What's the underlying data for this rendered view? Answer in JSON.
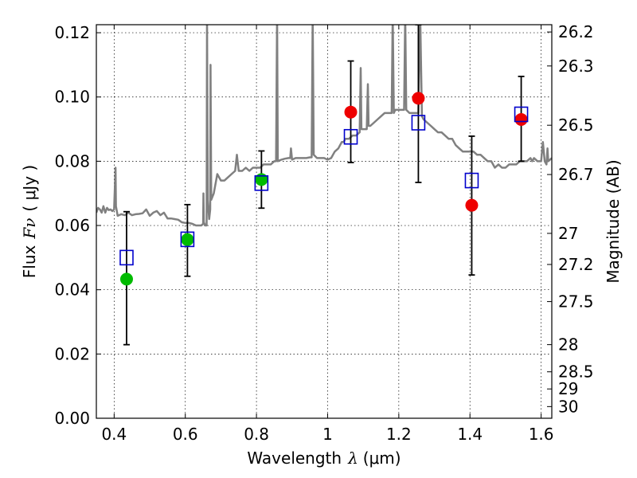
{
  "chart_data": {
    "type": "scatter",
    "xlabel": "Wavelength",
    "xlabel_symbol": "λ",
    "xlabel_unit": "(μm)",
    "ylabel": "Flux",
    "ylabel_symbol": "Fν",
    "ylabel_unit": "( μJy )",
    "y2label": "Magnitude (AB)",
    "xlim": [
      0.35,
      1.63
    ],
    "ylim": [
      0.0,
      0.1225
    ],
    "grid": true,
    "x_ticks": [
      0.4,
      0.6,
      0.8,
      1.0,
      1.2,
      1.4,
      1.6
    ],
    "x_tick_labels": [
      "0.4",
      "0.6",
      "0.8",
      "1",
      "1.2",
      "1.4",
      "1.6"
    ],
    "y_ticks": [
      0.0,
      0.02,
      0.04,
      0.06,
      0.08,
      0.1,
      0.12
    ],
    "y_tick_labels": [
      "0.00",
      "0.02",
      "0.04",
      "0.06",
      "0.08",
      "0.10",
      "0.12"
    ],
    "y2_ticks": [
      {
        "mag": 26.2,
        "label": "26.2"
      },
      {
        "mag": 26.3,
        "label": "26.3"
      },
      {
        "mag": 26.5,
        "label": "26.5"
      },
      {
        "mag": 26.7,
        "label": "26.7"
      },
      {
        "mag": 27.0,
        "label": "27"
      },
      {
        "mag": 27.2,
        "label": "27.2"
      },
      {
        "mag": 27.5,
        "label": "27.5"
      },
      {
        "mag": 28.0,
        "label": "28"
      },
      {
        "mag": 28.5,
        "label": "28.5"
      },
      {
        "mag": 29.0,
        "label": "29"
      },
      {
        "mag": 30.0,
        "label": "30"
      }
    ],
    "observed": [
      {
        "x": 0.435,
        "y": 0.0433,
        "err_low": 0.0229,
        "err_high": 0.0643,
        "color": "#00bb00"
      },
      {
        "x": 0.606,
        "y": 0.0556,
        "err_low": 0.0442,
        "err_high": 0.0665,
        "color": "#00bb00"
      },
      {
        "x": 0.814,
        "y": 0.0743,
        "err_low": 0.0654,
        "err_high": 0.0832,
        "color": "#00bb00"
      },
      {
        "x": 1.065,
        "y": 0.0953,
        "err_low": 0.0796,
        "err_high": 0.1112,
        "color": "#ee0000"
      },
      {
        "x": 1.255,
        "y": 0.0996,
        "err_low": 0.0734,
        "err_high": 0.1225,
        "color": "#ee0000"
      },
      {
        "x": 1.405,
        "y": 0.0663,
        "err_low": 0.0446,
        "err_high": 0.0878,
        "color": "#ee0000"
      },
      {
        "x": 1.544,
        "y": 0.093,
        "err_low": 0.08,
        "err_high": 0.1064,
        "color": "#ee0000"
      }
    ],
    "model_photometry": [
      {
        "x": 0.435,
        "y": 0.05
      },
      {
        "x": 0.606,
        "y": 0.0557
      },
      {
        "x": 0.814,
        "y": 0.0732
      },
      {
        "x": 1.065,
        "y": 0.0876
      },
      {
        "x": 1.255,
        "y": 0.092
      },
      {
        "x": 1.405,
        "y": 0.074
      },
      {
        "x": 1.544,
        "y": 0.0946
      }
    ],
    "model_spectrum": {
      "color": "#808080",
      "points": [
        [
          0.35,
          0.064
        ],
        [
          0.355,
          0.0655
        ],
        [
          0.36,
          0.065
        ],
        [
          0.365,
          0.064
        ],
        [
          0.37,
          0.066
        ],
        [
          0.375,
          0.064
        ],
        [
          0.38,
          0.0655
        ],
        [
          0.385,
          0.0648
        ],
        [
          0.39,
          0.065
        ],
        [
          0.395,
          0.0645
        ],
        [
          0.4,
          0.065
        ],
        [
          0.403,
          0.075
        ],
        [
          0.404,
          0.078
        ],
        [
          0.405,
          0.066
        ],
        [
          0.41,
          0.063
        ],
        [
          0.42,
          0.0635
        ],
        [
          0.43,
          0.0632
        ],
        [
          0.44,
          0.064
        ],
        [
          0.45,
          0.0632
        ],
        [
          0.46,
          0.0635
        ],
        [
          0.47,
          0.0636
        ],
        [
          0.48,
          0.0638
        ],
        [
          0.49,
          0.065
        ],
        [
          0.5,
          0.063
        ],
        [
          0.51,
          0.064
        ],
        [
          0.52,
          0.0645
        ],
        [
          0.53,
          0.0632
        ],
        [
          0.54,
          0.064
        ],
        [
          0.55,
          0.0622
        ],
        [
          0.56,
          0.0622
        ],
        [
          0.57,
          0.062
        ],
        [
          0.58,
          0.0618
        ],
        [
          0.59,
          0.061
        ],
        [
          0.6,
          0.0608
        ],
        [
          0.61,
          0.0608
        ],
        [
          0.62,
          0.0605
        ],
        [
          0.63,
          0.06
        ],
        [
          0.64,
          0.06
        ],
        [
          0.645,
          0.06
        ],
        [
          0.65,
          0.0605
        ],
        [
          0.651,
          0.07
        ],
        [
          0.652,
          0.061
        ],
        [
          0.656,
          0.06
        ],
        [
          0.66,
          0.06
        ],
        [
          0.661,
          0.126
        ],
        [
          0.663,
          0.068
        ],
        [
          0.667,
          0.062
        ],
        [
          0.67,
          0.065
        ],
        [
          0.671,
          0.11
        ],
        [
          0.673,
          0.068
        ],
        [
          0.68,
          0.07
        ],
        [
          0.69,
          0.076
        ],
        [
          0.7,
          0.074
        ],
        [
          0.71,
          0.074
        ],
        [
          0.72,
          0.075
        ],
        [
          0.73,
          0.076
        ],
        [
          0.74,
          0.077
        ],
        [
          0.745,
          0.082
        ],
        [
          0.75,
          0.077
        ],
        [
          0.76,
          0.077
        ],
        [
          0.77,
          0.078
        ],
        [
          0.78,
          0.077
        ],
        [
          0.79,
          0.078
        ],
        [
          0.8,
          0.078
        ],
        [
          0.81,
          0.078
        ],
        [
          0.82,
          0.079
        ],
        [
          0.83,
          0.079
        ],
        [
          0.84,
          0.079
        ],
        [
          0.85,
          0.08
        ],
        [
          0.855,
          0.08
        ],
        [
          0.858,
          0.126
        ],
        [
          0.86,
          0.08
        ],
        [
          0.87,
          0.0805
        ],
        [
          0.88,
          0.0808
        ],
        [
          0.89,
          0.081
        ],
        [
          0.895,
          0.081
        ],
        [
          0.897,
          0.084
        ],
        [
          0.9,
          0.0805
        ],
        [
          0.91,
          0.081
        ],
        [
          0.92,
          0.081
        ],
        [
          0.93,
          0.081
        ],
        [
          0.94,
          0.081
        ],
        [
          0.95,
          0.0812
        ],
        [
          0.955,
          0.0812
        ],
        [
          0.958,
          0.126
        ],
        [
          0.961,
          0.082
        ],
        [
          0.97,
          0.081
        ],
        [
          0.98,
          0.081
        ],
        [
          0.99,
          0.081
        ],
        [
          1.0,
          0.0805
        ],
        [
          1.01,
          0.081
        ],
        [
          1.02,
          0.083
        ],
        [
          1.03,
          0.084
        ],
        [
          1.035,
          0.085
        ],
        [
          1.04,
          0.086
        ],
        [
          1.045,
          0.086
        ],
        [
          1.05,
          0.087
        ],
        [
          1.06,
          0.087
        ],
        [
          1.07,
          0.088
        ],
        [
          1.08,
          0.088
        ],
        [
          1.085,
          0.0885
        ],
        [
          1.09,
          0.089
        ],
        [
          1.093,
          0.109
        ],
        [
          1.095,
          0.09
        ],
        [
          1.1,
          0.09
        ],
        [
          1.11,
          0.09
        ],
        [
          1.113,
          0.104
        ],
        [
          1.115,
          0.091
        ],
        [
          1.12,
          0.091
        ],
        [
          1.13,
          0.092
        ],
        [
          1.14,
          0.093
        ],
        [
          1.15,
          0.094
        ],
        [
          1.16,
          0.095
        ],
        [
          1.17,
          0.095
        ],
        [
          1.18,
          0.095
        ],
        [
          1.183,
          0.126
        ],
        [
          1.186,
          0.095
        ],
        [
          1.19,
          0.096
        ],
        [
          1.2,
          0.096
        ],
        [
          1.21,
          0.096
        ],
        [
          1.215,
          0.096
        ],
        [
          1.218,
          0.126
        ],
        [
          1.221,
          0.096
        ],
        [
          1.23,
          0.095
        ],
        [
          1.24,
          0.095
        ],
        [
          1.25,
          0.095
        ],
        [
          1.255,
          0.095
        ],
        [
          1.26,
          0.126
        ],
        [
          1.265,
          0.094
        ],
        [
          1.27,
          0.093
        ],
        [
          1.28,
          0.092
        ],
        [
          1.29,
          0.091
        ],
        [
          1.3,
          0.09
        ],
        [
          1.31,
          0.089
        ],
        [
          1.32,
          0.089
        ],
        [
          1.33,
          0.088
        ],
        [
          1.34,
          0.087
        ],
        [
          1.35,
          0.087
        ],
        [
          1.36,
          0.085
        ],
        [
          1.37,
          0.084
        ],
        [
          1.38,
          0.083
        ],
        [
          1.39,
          0.083
        ],
        [
          1.4,
          0.083
        ],
        [
          1.41,
          0.083
        ],
        [
          1.42,
          0.082
        ],
        [
          1.43,
          0.082
        ],
        [
          1.44,
          0.081
        ],
        [
          1.45,
          0.08
        ],
        [
          1.46,
          0.08
        ],
        [
          1.47,
          0.078
        ],
        [
          1.48,
          0.079
        ],
        [
          1.49,
          0.078
        ],
        [
          1.5,
          0.078
        ],
        [
          1.51,
          0.079
        ],
        [
          1.52,
          0.079
        ],
        [
          1.53,
          0.079
        ],
        [
          1.54,
          0.08
        ],
        [
          1.55,
          0.08
        ],
        [
          1.56,
          0.08
        ],
        [
          1.57,
          0.081
        ],
        [
          1.575,
          0.08
        ],
        [
          1.58,
          0.081
        ],
        [
          1.59,
          0.08
        ],
        [
          1.6,
          0.08
        ],
        [
          1.605,
          0.086
        ],
        [
          1.61,
          0.08
        ],
        [
          1.615,
          0.079
        ],
        [
          1.618,
          0.084
        ],
        [
          1.62,
          0.08
        ],
        [
          1.63,
          0.081
        ]
      ]
    }
  }
}
